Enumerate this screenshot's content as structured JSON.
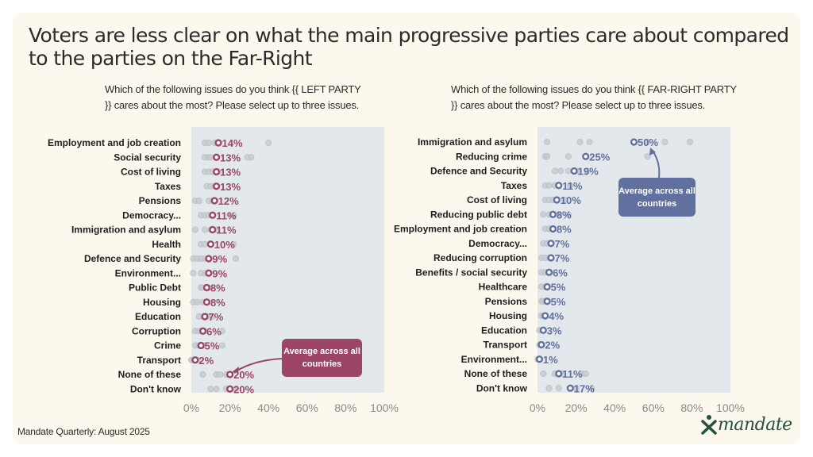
{
  "title": "Voters are less clear on what the main progressive parties care about compared to the parties on the Far-Right",
  "footer": "Mandate Quarterly: August 2025",
  "logo": {
    "text": "mandate",
    "icon": "person-x-icon",
    "color": "#24523f"
  },
  "chart_data": [
    {
      "type": "scatter",
      "id": "left",
      "question": "Which of the following issues do you think {{ LEFT PARTY }} cares about the most? Please select up to three issues.",
      "accent": "#9c4568",
      "callout": "Average across all countries",
      "xlim": [
        0,
        100
      ],
      "xticks": [
        "0%",
        "20%",
        "40%",
        "60%",
        "80%",
        "100%"
      ],
      "categories": [
        "Employment and job creation",
        "Social security",
        "Cost of living",
        "Taxes",
        "Pensions",
        "Democracy...",
        "Immigration and asylum",
        "Health",
        "Defence and Security",
        "Environment...",
        "Public Debt",
        "Housing",
        "Education",
        "Corruption",
        "Crime",
        "Transport",
        "None of these",
        "Don't know"
      ],
      "average": [
        14,
        13,
        13,
        13,
        12,
        11,
        11,
        10,
        9,
        9,
        8,
        8,
        7,
        6,
        5,
        2,
        20,
        20
      ],
      "labels": [
        "14%",
        "13%",
        "13%",
        "13%",
        "12%",
        "11%",
        "11%",
        "10%",
        "9%",
        "9%",
        "8%",
        "8%",
        "7%",
        "6%",
        "5%",
        "2%",
        "20%",
        "20%"
      ],
      "country_values": [
        [
          7,
          9,
          12,
          40
        ],
        [
          7,
          9,
          10,
          29,
          31
        ],
        [
          7,
          9,
          11,
          14
        ],
        [
          8,
          10,
          12,
          13
        ],
        [
          2,
          4,
          9,
          11
        ],
        [
          5,
          7,
          9,
          20,
          22
        ],
        [
          2,
          7,
          10,
          13
        ],
        [
          5,
          7,
          10,
          22
        ],
        [
          1,
          3,
          5,
          7,
          23
        ],
        [
          1,
          5,
          7,
          9
        ],
        [
          5,
          6,
          8,
          9
        ],
        [
          1,
          3,
          6,
          8
        ],
        [
          4,
          6,
          8,
          11
        ],
        [
          2,
          4,
          7,
          16
        ],
        [
          2,
          4,
          6,
          16
        ],
        [
          0,
          1,
          3
        ],
        [
          6,
          13,
          15,
          18
        ],
        [
          10,
          13,
          18,
          23
        ]
      ]
    },
    {
      "type": "scatter",
      "id": "right",
      "question": "Which of the following issues do you think {{ FAR-RIGHT PARTY }} cares about the most? Please select up to three issues.",
      "accent": "#6270a0",
      "callout": "Average across all countries",
      "xlim": [
        0,
        100
      ],
      "xticks": [
        "0%",
        "20%",
        "40%",
        "60%",
        "80%",
        "100%"
      ],
      "categories": [
        "Immigration and asylum",
        "Reducing crime",
        "Defence and Security",
        "Taxes",
        "Cost of living",
        "Reducing public debt",
        "Employment and job creation",
        "Democracy...",
        "Reducing corruption",
        "Benefits / social security",
        "Healthcare",
        "Pensions",
        "Housing",
        "Education",
        "Transport",
        "Environment...",
        "None of these",
        "Don't know"
      ],
      "average": [
        50,
        25,
        19,
        11,
        10,
        8,
        8,
        7,
        7,
        6,
        5,
        5,
        4,
        3,
        2,
        1,
        11,
        17
      ],
      "labels": [
        "50%",
        "25%",
        "19%",
        "11%",
        "10%",
        "8%",
        "8%",
        "7%",
        "7%",
        "6%",
        "5%",
        "5%",
        "4%",
        "3%",
        "2%",
        "1%",
        "11%",
        "17%"
      ],
      "country_values": [
        [
          5,
          22,
          27,
          57,
          66,
          79
        ],
        [
          4,
          5,
          16,
          57
        ],
        [
          9,
          12,
          16,
          21,
          26
        ],
        [
          4,
          6,
          9,
          17
        ],
        [
          4,
          6,
          8,
          14
        ],
        [
          3,
          6,
          11,
          16
        ],
        [
          4,
          6,
          8
        ],
        [
          3,
          5,
          7
        ],
        [
          2,
          4,
          6
        ],
        [
          2,
          4,
          6
        ],
        [
          2,
          4
        ],
        [
          2,
          3,
          4
        ],
        [
          2,
          3,
          4
        ],
        [
          1,
          2,
          3
        ],
        [
          1,
          2
        ],
        [
          0,
          1
        ],
        [
          3,
          9,
          13,
          23,
          25
        ],
        [
          6,
          11,
          20,
          28
        ]
      ]
    }
  ]
}
